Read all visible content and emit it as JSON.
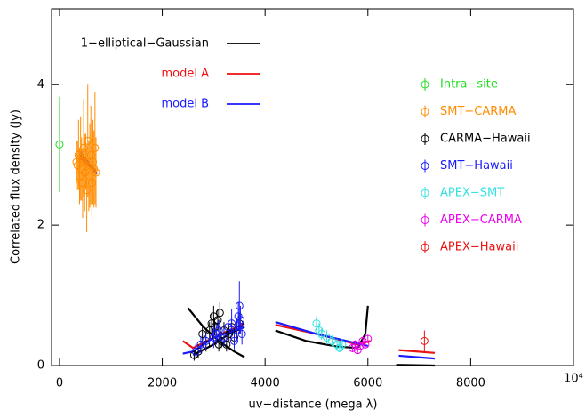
{
  "chart_data": {
    "type": "scatter",
    "x_label": "uv−distance (mega λ)",
    "y_label": "Correlated flux density (Jy)",
    "xlim": [
      -155,
      10000
    ],
    "ylim": [
      0,
      5.08
    ],
    "xticks": [
      0,
      2000,
      4000,
      6000,
      8000,
      {
        "value": 10000,
        "label": "10⁴"
      }
    ],
    "yticks": [
      0,
      2,
      4
    ],
    "series": [
      {
        "name": "Intra−site",
        "color": "#22dd22",
        "x": [
          0
        ],
        "y": [
          3.15
        ],
        "err": [
          0.68
        ]
      },
      {
        "name": "SMT−CARMA",
        "color": "#ff8c00",
        "x": [
          330,
          350,
          370,
          390,
          410,
          430,
          450,
          470,
          490,
          510,
          530,
          550,
          570,
          590,
          610,
          630,
          650,
          670,
          690,
          710
        ],
        "y": [
          2.9,
          2.85,
          3.0,
          2.7,
          2.95,
          2.8,
          2.6,
          3.1,
          2.75,
          2.9,
          2.5,
          3.2,
          2.7,
          2.85,
          3.0,
          2.6,
          2.9,
          2.8,
          3.1,
          2.75
        ],
        "err": [
          0.3,
          0.35,
          0.5,
          0.4,
          0.6,
          0.45,
          0.5,
          0.7,
          0.55,
          0.4,
          0.6,
          0.8,
          0.5,
          0.6,
          0.7,
          0.5,
          0.6,
          0.55,
          0.8,
          0.5
        ]
      },
      {
        "name": "CARMA−Hawaii",
        "color": "#000000",
        "x": [
          2620,
          2700,
          2780,
          2850,
          2920,
          2960,
          3000,
          3020,
          3050,
          3080,
          3100,
          3120,
          3150,
          3200,
          3250,
          3300,
          3350,
          3400,
          3450,
          3500
        ],
        "y": [
          0.15,
          0.2,
          0.45,
          0.3,
          0.5,
          0.6,
          0.7,
          0.55,
          0.4,
          0.65,
          0.3,
          0.75,
          0.35,
          0.5,
          0.3,
          0.45,
          0.55,
          0.4,
          0.5,
          0.6
        ],
        "err": [
          0.08,
          0.1,
          0.12,
          0.1,
          0.12,
          0.15,
          0.15,
          0.12,
          0.1,
          0.15,
          0.1,
          0.15,
          0.1,
          0.12,
          0.1,
          0.12,
          0.12,
          0.1,
          0.12,
          0.15
        ]
      },
      {
        "name": "SMT−Hawaii",
        "color": "#1a1aff",
        "x": [
          2650,
          2750,
          2850,
          3000,
          3050,
          3100,
          3200,
          3280,
          3350,
          3400,
          3450,
          3480,
          3500,
          3520,
          3550
        ],
        "y": [
          0.2,
          0.3,
          0.35,
          0.4,
          0.45,
          0.5,
          0.4,
          0.55,
          0.6,
          0.35,
          0.5,
          0.7,
          0.85,
          0.65,
          0.45
        ],
        "err": [
          0.1,
          0.12,
          0.12,
          0.15,
          0.15,
          0.15,
          0.12,
          0.15,
          0.2,
          0.12,
          0.15,
          0.2,
          0.35,
          0.2,
          0.15
        ]
      },
      {
        "name": "APEX−SMT",
        "color": "#33e0e0",
        "x": [
          5000,
          5050,
          5100,
          5200,
          5300,
          5400,
          5450,
          5500
        ],
        "y": [
          0.6,
          0.5,
          0.45,
          0.4,
          0.35,
          0.3,
          0.25,
          0.3
        ],
        "err": [
          0.1,
          0.1,
          0.08,
          0.1,
          0.08,
          0.08,
          0.06,
          0.08
        ]
      },
      {
        "name": "APEX−CARMA",
        "color": "#ee00ee",
        "x": [
          5700,
          5750,
          5800,
          5850,
          5900,
          5950,
          6000
        ],
        "y": [
          0.25,
          0.3,
          0.22,
          0.28,
          0.35,
          0.3,
          0.38
        ],
        "err": [
          0.06,
          0.06,
          0.05,
          0.06,
          0.06,
          0.05,
          0.06
        ]
      },
      {
        "name": "APEX−Hawaii",
        "color": "#ee1111",
        "x": [
          7100
        ],
        "y": [
          0.35
        ],
        "err": [
          0.15
        ]
      }
    ],
    "models": [
      {
        "name": "1−elliptical−Gaussian",
        "color": "#000000",
        "x": [
          400,
          550,
          720,
          null,
          2500,
          2800,
          3100,
          3400,
          3600,
          null,
          2600,
          3000,
          3300,
          3600,
          null,
          4200,
          4800,
          5400,
          5800,
          5950,
          6000,
          null,
          6550,
          7300
        ],
        "y": [
          3.0,
          2.9,
          2.75,
          null,
          0.82,
          0.55,
          0.35,
          0.2,
          0.12,
          null,
          0.15,
          0.3,
          0.45,
          0.55,
          null,
          0.5,
          0.35,
          0.27,
          0.25,
          0.45,
          0.85,
          null,
          0.01,
          0.0
        ]
      },
      {
        "name": "model A",
        "color": "#ee1111",
        "x": [
          400,
          720,
          null,
          2400,
          2600,
          3000,
          3600,
          null,
          4200,
          5000,
          5800,
          6050,
          null,
          6600,
          7300
        ],
        "y": [
          2.95,
          2.75,
          null,
          0.35,
          0.25,
          0.4,
          0.6,
          null,
          0.58,
          0.45,
          0.3,
          0.35,
          null,
          0.22,
          0.18
        ]
      },
      {
        "name": "model B",
        "color": "#1a1aff",
        "x": [
          400,
          720,
          null,
          2400,
          2600,
          3000,
          3600,
          null,
          4200,
          5000,
          6000,
          null,
          6600,
          7300
        ],
        "y": [
          3.05,
          2.72,
          null,
          0.17,
          0.2,
          0.4,
          0.55,
          null,
          0.62,
          0.45,
          0.28,
          null,
          0.14,
          0.1
        ]
      }
    ]
  }
}
